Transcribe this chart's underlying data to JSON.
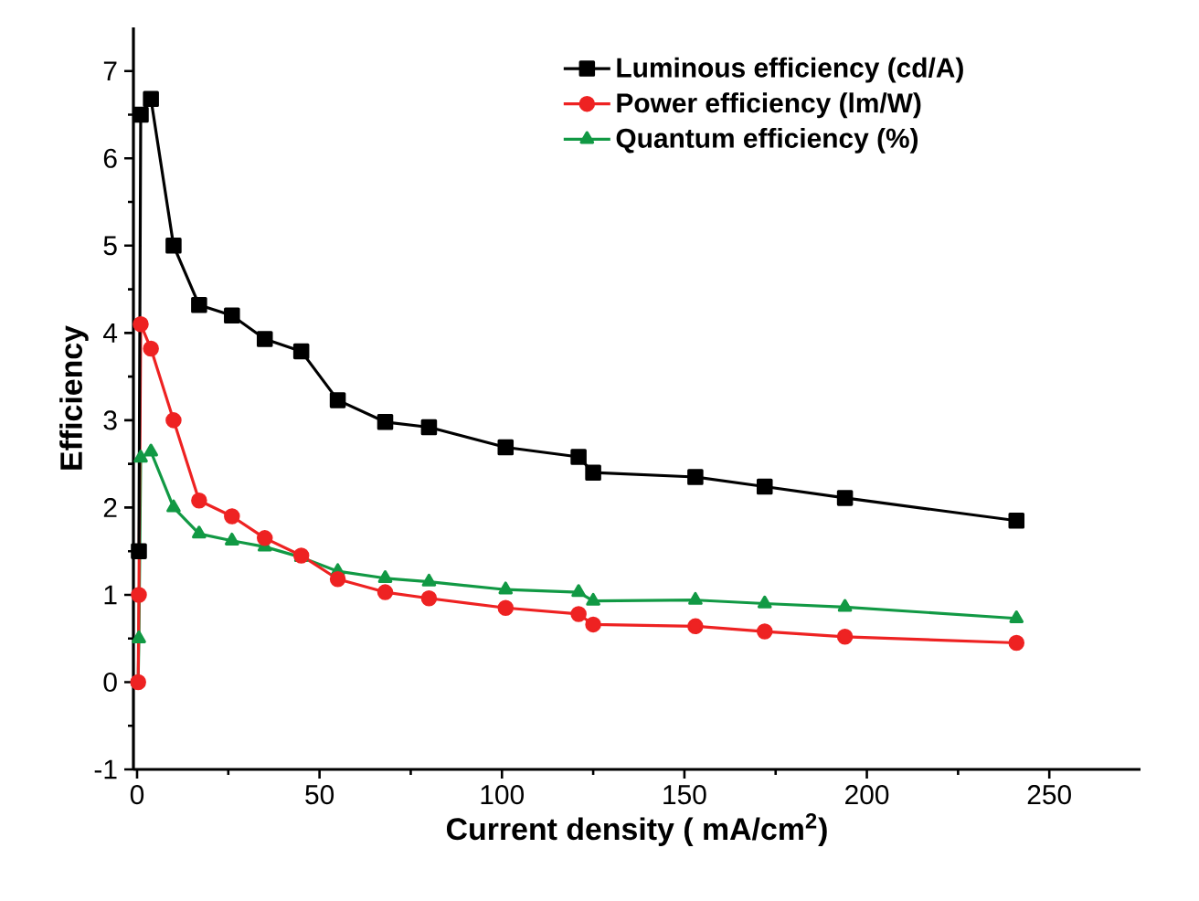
{
  "chart_data": {
    "type": "line",
    "xlabel": "Current density ( mA/cm$^{2}$)",
    "ylabel": "Efficiency",
    "xlim": [
      -1,
      275
    ],
    "ylim": [
      -1,
      7.5
    ],
    "xticks": [
      0,
      50,
      100,
      150,
      200,
      250
    ],
    "yticks": [
      -1,
      0,
      1,
      2,
      3,
      4,
      5,
      6,
      7
    ],
    "legend": "top right",
    "grid": false,
    "line_style": "solid",
    "series": [
      {
        "name": "Luminous efficiency (cd/A)",
        "color": "#000000",
        "marker": "square",
        "x": [
          0.5,
          1,
          3.8,
          10,
          17,
          26,
          35,
          45,
          55,
          68,
          80,
          101,
          121,
          125,
          153,
          172,
          194,
          241
        ],
        "values": [
          1.5,
          6.5,
          6.68,
          5.0,
          4.32,
          4.2,
          3.93,
          3.79,
          3.23,
          2.98,
          2.92,
          2.69,
          2.58,
          2.4,
          2.35,
          2.24,
          2.11,
          1.85
        ]
      },
      {
        "name": "Power efficiency (lm/W)",
        "color": "#ee2222",
        "marker": "circle",
        "x": [
          0.3,
          0.5,
          1,
          3.8,
          10,
          17,
          26,
          35,
          45,
          55,
          68,
          80,
          101,
          121,
          125,
          153,
          172,
          194,
          241
        ],
        "values": [
          0,
          1.0,
          4.1,
          3.82,
          3.0,
          2.08,
          1.9,
          1.65,
          1.45,
          1.18,
          1.03,
          0.96,
          0.85,
          0.78,
          0.66,
          0.64,
          0.58,
          0.52,
          0.45
        ]
      },
      {
        "name": "Quantum efficiency (%)",
        "color": "#119944",
        "marker": "triangle",
        "x": [
          0.3,
          0.5,
          1,
          3.8,
          10,
          17,
          26,
          35,
          45,
          55,
          68,
          80,
          101,
          121,
          125,
          153,
          172,
          194,
          241
        ],
        "values": [
          0,
          0.5,
          2.57,
          2.64,
          2.0,
          1.7,
          1.62,
          1.55,
          1.43,
          1.27,
          1.19,
          1.15,
          1.06,
          1.03,
          0.93,
          0.94,
          0.9,
          0.86,
          0.73
        ]
      }
    ]
  }
}
